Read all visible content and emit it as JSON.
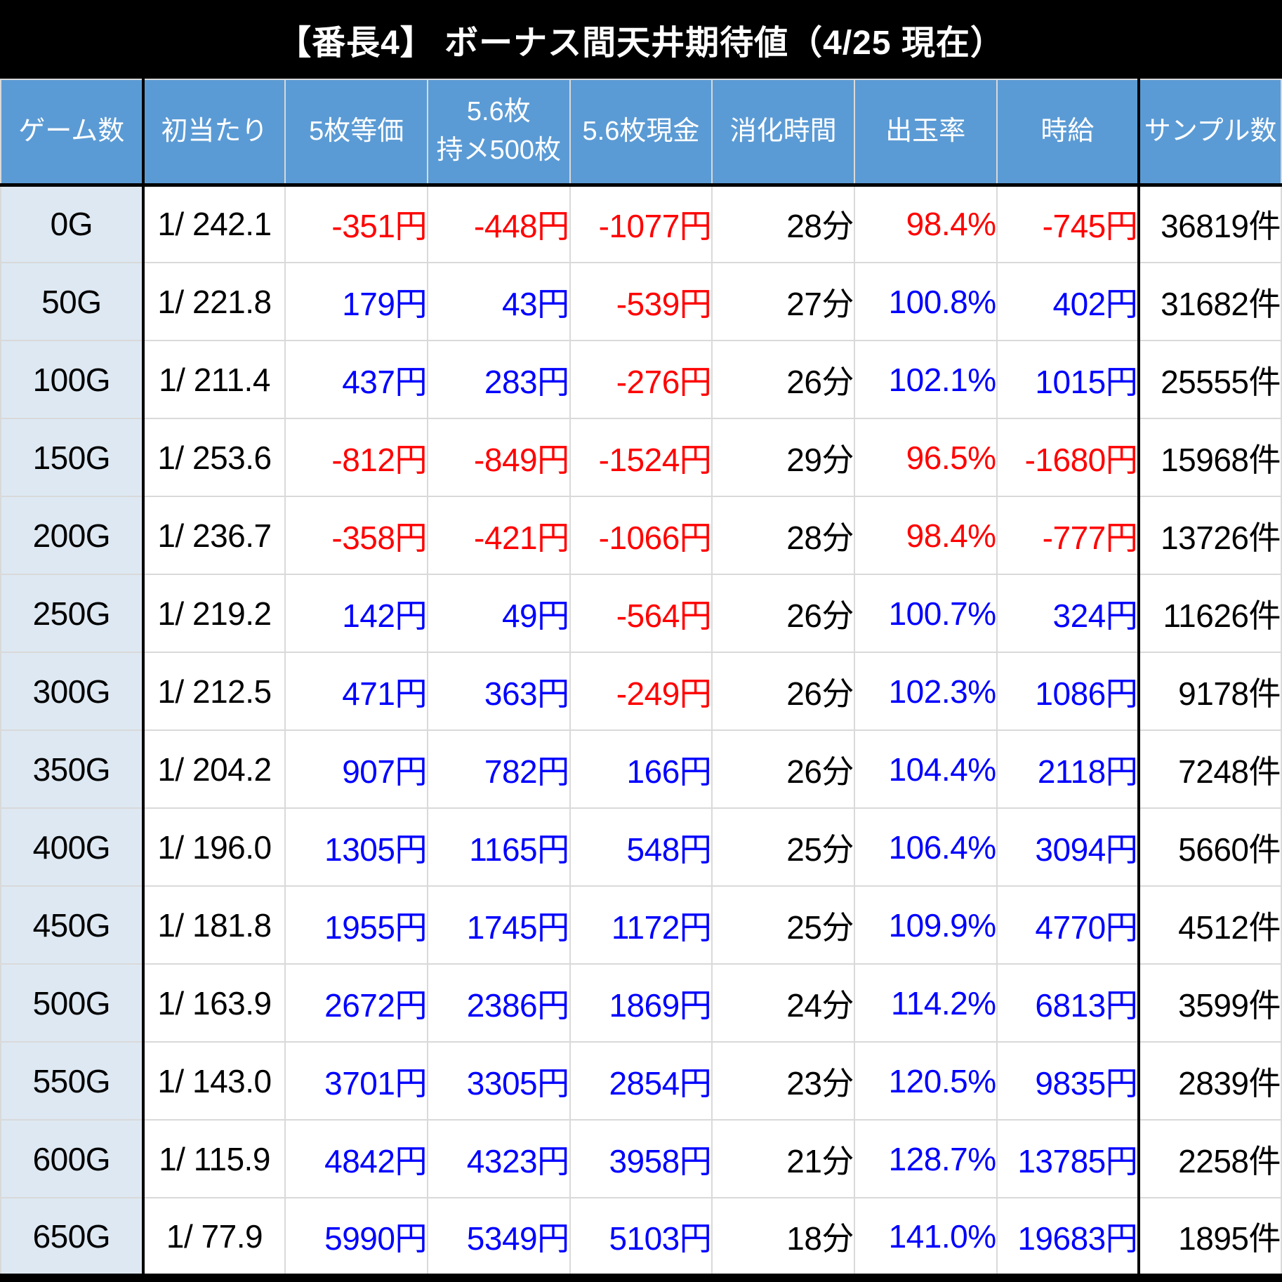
{
  "title": "【番長4】 ボーナス間天井期待値（4/25 現在）",
  "colors": {
    "title_bg": "#000000",
    "title_text": "#ffffff",
    "header_bg": "#5b9bd5",
    "header_text": "#ffffff",
    "row_label_bg": "#dde8f2",
    "grid_line": "#d9d9d9",
    "heavy_line": "#000000",
    "body_text": "#000000",
    "negative": "#ff0000",
    "positive": "#0000ff"
  },
  "chart_data": {
    "type": "table",
    "title": "【番長4】 ボーナス間天井期待値（4/25 現在）",
    "column_keys": [
      "games",
      "first_hit",
      "equal5",
      "mochi56",
      "cash56",
      "time",
      "rate",
      "hourly",
      "samples"
    ],
    "columns": [
      "ゲーム数",
      "初当たり",
      "5枚等価",
      "5.6枚\n持メ500枚",
      "5.6枚現金",
      "消化時間",
      "出玉率",
      "時給",
      "サンプル数"
    ],
    "rows": [
      [
        "0G",
        "1/ 242.1",
        "-351円",
        "-448円",
        "-1077円",
        "28分",
        "98.4%",
        "-745円",
        "36819件"
      ],
      [
        "50G",
        "1/ 221.8",
        "179円",
        "43円",
        "-539円",
        "27分",
        "100.8%",
        "402円",
        "31682件"
      ],
      [
        "100G",
        "1/ 211.4",
        "437円",
        "283円",
        "-276円",
        "26分",
        "102.1%",
        "1015円",
        "25555件"
      ],
      [
        "150G",
        "1/ 253.6",
        "-812円",
        "-849円",
        "-1524円",
        "29分",
        "96.5%",
        "-1680円",
        "15968件"
      ],
      [
        "200G",
        "1/ 236.7",
        "-358円",
        "-421円",
        "-1066円",
        "28分",
        "98.4%",
        "-777円",
        "13726件"
      ],
      [
        "250G",
        "1/ 219.2",
        "142円",
        "49円",
        "-564円",
        "26分",
        "100.7%",
        "324円",
        "11626件"
      ],
      [
        "300G",
        "1/ 212.5",
        "471円",
        "363円",
        "-249円",
        "26分",
        "102.3%",
        "1086円",
        "9178件"
      ],
      [
        "350G",
        "1/ 204.2",
        "907円",
        "782円",
        "166円",
        "26分",
        "104.4%",
        "2118円",
        "7248件"
      ],
      [
        "400G",
        "1/ 196.0",
        "1305円",
        "1165円",
        "548円",
        "25分",
        "106.4%",
        "3094円",
        "5660件"
      ],
      [
        "450G",
        "1/ 181.8",
        "1955円",
        "1745円",
        "1172円",
        "25分",
        "109.9%",
        "4770円",
        "4512件"
      ],
      [
        "500G",
        "1/ 163.9",
        "2672円",
        "2386円",
        "1869円",
        "24分",
        "114.2%",
        "6813円",
        "3599件"
      ],
      [
        "550G",
        "1/ 143.0",
        "3701円",
        "3305円",
        "2854円",
        "23分",
        "120.5%",
        "9835円",
        "2839件"
      ],
      [
        "600G",
        "1/ 115.9",
        "4842円",
        "4323円",
        "3958円",
        "21分",
        "128.7%",
        "13785円",
        "2258件"
      ],
      [
        "650G",
        "1/ 77.9",
        "5990円",
        "5349円",
        "5103円",
        "18分",
        "141.0%",
        "19683円",
        "1895件"
      ]
    ]
  }
}
